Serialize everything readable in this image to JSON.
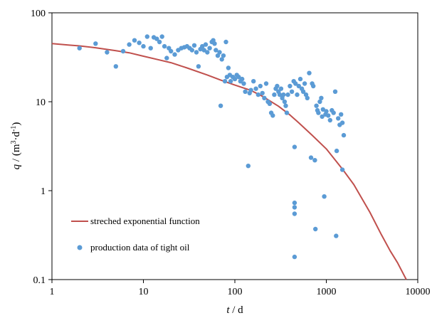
{
  "chart_data": {
    "type": "scatter",
    "title": "",
    "x_scale": "log",
    "y_scale": "log",
    "xlim": [
      1,
      10000
    ],
    "ylim": [
      0.1,
      100
    ],
    "x_ticks": [
      1,
      10,
      100,
      1000,
      10000
    ],
    "y_ticks": [
      0.1,
      1,
      10,
      100
    ],
    "x_tick_labels": [
      "1",
      "10",
      "100",
      "1000",
      "10000"
    ],
    "y_tick_labels": [
      "0.1",
      "1",
      "10",
      "100"
    ],
    "grid": false,
    "legend_position": "bottom-left",
    "xlabel": {
      "var": "t",
      "unit": " / d"
    },
    "ylabel": {
      "var": "q",
      "prefix": " / (m",
      "sup1": "3",
      "mid": "·d",
      "sup2": "-1",
      "suffix": ")"
    },
    "series": [
      {
        "name": "streched exponential function",
        "kind": "line",
        "color": "#c0504d",
        "x": [
          1,
          1.5,
          2,
          3,
          5,
          7,
          10,
          15,
          20,
          30,
          50,
          70,
          100,
          150,
          200,
          300,
          400,
          500,
          700,
          1000,
          1500,
          2000,
          3000,
          4000,
          5000,
          6000,
          7500
        ],
        "y": [
          45,
          43.5,
          42.5,
          40.5,
          37.5,
          35.5,
          32.5,
          29.5,
          27.5,
          24,
          20,
          17.5,
          15.4,
          13.4,
          11.5,
          8.9,
          7.1,
          5.8,
          4.2,
          2.95,
          1.75,
          1.17,
          0.57,
          0.32,
          0.21,
          0.155,
          0.1
        ]
      },
      {
        "name": "production data of tight oil",
        "kind": "scatter",
        "color": "#5b9bd5",
        "points": [
          [
            2,
            40
          ],
          [
            3,
            45
          ],
          [
            4,
            36
          ],
          [
            5,
            25
          ],
          [
            6,
            37
          ],
          [
            7,
            44
          ],
          [
            8,
            49
          ],
          [
            9,
            46
          ],
          [
            10,
            42
          ],
          [
            11,
            54
          ],
          [
            12,
            40
          ],
          [
            13,
            53
          ],
          [
            14,
            51
          ],
          [
            15,
            47
          ],
          [
            16,
            54
          ],
          [
            17,
            42
          ],
          [
            18,
            31
          ],
          [
            19,
            40
          ],
          [
            20,
            37
          ],
          [
            22,
            34
          ],
          [
            24,
            38
          ],
          [
            26,
            40
          ],
          [
            28,
            41
          ],
          [
            30,
            42
          ],
          [
            32,
            40
          ],
          [
            34,
            38
          ],
          [
            36,
            43
          ],
          [
            38,
            36
          ],
          [
            40,
            25
          ],
          [
            42,
            39
          ],
          [
            44,
            42
          ],
          [
            46,
            38
          ],
          [
            48,
            44
          ],
          [
            50,
            36
          ],
          [
            53,
            40
          ],
          [
            56,
            47
          ],
          [
            58,
            49
          ],
          [
            60,
            45
          ],
          [
            62,
            38
          ],
          [
            65,
            33
          ],
          [
            68,
            36
          ],
          [
            70,
            9
          ],
          [
            72,
            30
          ],
          [
            75,
            33
          ],
          [
            78,
            17
          ],
          [
            80,
            47
          ],
          [
            82,
            19
          ],
          [
            85,
            24
          ],
          [
            88,
            20
          ],
          [
            90,
            17
          ],
          [
            95,
            19
          ],
          [
            100,
            18
          ],
          [
            105,
            20
          ],
          [
            110,
            19
          ],
          [
            115,
            17
          ],
          [
            120,
            18
          ],
          [
            125,
            16
          ],
          [
            130,
            13
          ],
          [
            140,
            1.9
          ],
          [
            145,
            12.5
          ],
          [
            150,
            13.5
          ],
          [
            160,
            17
          ],
          [
            170,
            14
          ],
          [
            180,
            12
          ],
          [
            190,
            15
          ],
          [
            200,
            12.5
          ],
          [
            210,
            11
          ],
          [
            220,
            16
          ],
          [
            230,
            10
          ],
          [
            240,
            9.5
          ],
          [
            250,
            7.5
          ],
          [
            260,
            7
          ],
          [
            270,
            12
          ],
          [
            280,
            14
          ],
          [
            290,
            15
          ],
          [
            300,
            13
          ],
          [
            310,
            12
          ],
          [
            320,
            14
          ],
          [
            330,
            11
          ],
          [
            340,
            12
          ],
          [
            350,
            10
          ],
          [
            360,
            9
          ],
          [
            370,
            7.5
          ],
          [
            380,
            12
          ],
          [
            400,
            15
          ],
          [
            420,
            13
          ],
          [
            440,
            17
          ],
          [
            450,
            0.18
          ],
          [
            450,
            0.55
          ],
          [
            450,
            0.65
          ],
          [
            450,
            0.73
          ],
          [
            450,
            3.1
          ],
          [
            460,
            16
          ],
          [
            480,
            12
          ],
          [
            500,
            15
          ],
          [
            520,
            18
          ],
          [
            540,
            14
          ],
          [
            560,
            13
          ],
          [
            580,
            16
          ],
          [
            600,
            12
          ],
          [
            620,
            11
          ],
          [
            650,
            21
          ],
          [
            680,
            2.35
          ],
          [
            700,
            16
          ],
          [
            720,
            15
          ],
          [
            750,
            2.2
          ],
          [
            760,
            0.37
          ],
          [
            780,
            9
          ],
          [
            800,
            8
          ],
          [
            820,
            7.5
          ],
          [
            850,
            10
          ],
          [
            880,
            11
          ],
          [
            900,
            6.8
          ],
          [
            920,
            8.2
          ],
          [
            950,
            0.86
          ],
          [
            980,
            7.2
          ],
          [
            1000,
            7.8
          ],
          [
            1050,
            7
          ],
          [
            1100,
            6.2
          ],
          [
            1150,
            8
          ],
          [
            1200,
            7.5
          ],
          [
            1250,
            13
          ],
          [
            1280,
            0.31
          ],
          [
            1300,
            2.8
          ],
          [
            1350,
            6.5
          ],
          [
            1400,
            5.5
          ],
          [
            1450,
            7.2
          ],
          [
            1500,
            1.72
          ],
          [
            1500,
            5.8
          ],
          [
            1550,
            4.2
          ]
        ]
      }
    ]
  }
}
